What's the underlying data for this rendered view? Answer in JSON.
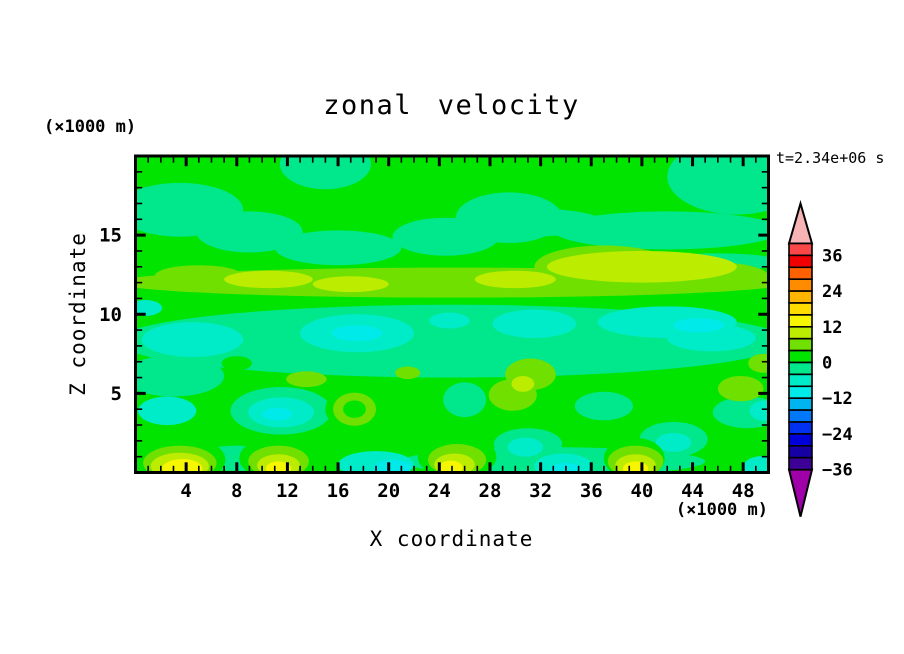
{
  "chart_data": {
    "type": "filled_contour",
    "title": "zonal velocity",
    "time_annotation": "t=2.34e+06 s",
    "xlabel": "X coordinate",
    "x_unit_label": "(×1000 m)",
    "ylabel": "Z coordinate",
    "y_unit_label": "(×1000 m)",
    "x_range": [
      0,
      50
    ],
    "z_range": [
      0,
      20
    ],
    "x_major_ticks": [
      4,
      8,
      12,
      16,
      20,
      24,
      28,
      32,
      36,
      40,
      44,
      48
    ],
    "x_minor_tick_step": 1,
    "y_major_ticks": [
      5,
      10,
      15
    ],
    "y_minor_tick_step": 1,
    "grid": false,
    "contour_interval": 4,
    "background_band": "0..4",
    "palette": {
      "12..16": "#F6F600",
      "8..12": "#BCEC00",
      "4..8": "#70E000",
      "0..4": "#00E400",
      "-4..0": "#00E78C",
      "-8..-4": "#00ECC8",
      "-12..-8": "#00EAEA"
    },
    "colorbar": {
      "position": "right",
      "labels": [
        "36",
        "24",
        "12",
        "0",
        "−12",
        "−24",
        "−36"
      ],
      "over_color": "#F8B4B4",
      "under_color": "#A000A8",
      "segments": [
        {
          "min": 36,
          "max": 40,
          "color": "#FA4848"
        },
        {
          "min": 32,
          "max": 36,
          "color": "#F00000"
        },
        {
          "min": 28,
          "max": 32,
          "color": "#FF6000"
        },
        {
          "min": 24,
          "max": 28,
          "color": "#FF8C00"
        },
        {
          "min": 20,
          "max": 24,
          "color": "#FFB400"
        },
        {
          "min": 16,
          "max": 20,
          "color": "#FFDC00"
        },
        {
          "min": 12,
          "max": 16,
          "color": "#F6F600"
        },
        {
          "min": 8,
          "max": 12,
          "color": "#BCEC00"
        },
        {
          "min": 4,
          "max": 8,
          "color": "#70E000"
        },
        {
          "min": 0,
          "max": 4,
          "color": "#00E400"
        },
        {
          "min": -4,
          "max": 0,
          "color": "#00E78C"
        },
        {
          "min": -8,
          "max": -4,
          "color": "#00ECC8"
        },
        {
          "min": -12,
          "max": -8,
          "color": "#00EAEA"
        },
        {
          "min": -16,
          "max": -12,
          "color": "#00B4F0"
        },
        {
          "min": -20,
          "max": -16,
          "color": "#0078F8"
        },
        {
          "min": -24,
          "max": -20,
          "color": "#0030F0"
        },
        {
          "min": -28,
          "max": -24,
          "color": "#0000D8"
        },
        {
          "min": -32,
          "max": -28,
          "color": "#1600A4"
        },
        {
          "min": -36,
          "max": -32,
          "color": "#3C0096"
        }
      ]
    },
    "region_format": [
      "band",
      "cx_x1000m",
      "cz_x1000m",
      "rx_x1000m",
      "rz_x1000m"
    ],
    "regions": [
      [
        "-4..0",
        15,
        19.5,
        3.6,
        1.6
      ],
      [
        "-4..0",
        3.5,
        16.6,
        5.0,
        1.7
      ],
      [
        "-4..0",
        9,
        15.2,
        4.2,
        1.3
      ],
      [
        "-4..0",
        16,
        14.2,
        5.0,
        1.1
      ],
      [
        "-4..0",
        24.5,
        14.9,
        4.2,
        1.2
      ],
      [
        "-4..0",
        29.5,
        16.1,
        4.2,
        1.6
      ],
      [
        "-4..0",
        47.5,
        18.7,
        5.5,
        2.4
      ],
      [
        "-4..0",
        42,
        15.3,
        9.0,
        1.2
      ],
      [
        "-4..0",
        31,
        15.8,
        6.0,
        0.9
      ],
      [
        "-4..0",
        46,
        13.3,
        5.0,
        0.55
      ],
      [
        "-4..0",
        25,
        8.3,
        26.5,
        2.3
      ],
      [
        "-4..0",
        3,
        6.1,
        4.0,
        1.3
      ],
      [
        "4..8",
        25,
        12.0,
        26.6,
        0.95
      ],
      [
        "4..8",
        5,
        12.4,
        3.5,
        0.7
      ],
      [
        "4..8",
        37,
        13.0,
        5.5,
        1.35
      ],
      [
        "4..8",
        45.5,
        12.4,
        4.5,
        0.9
      ],
      [
        "8..12",
        10.5,
        12.2,
        3.5,
        0.55
      ],
      [
        "8..12",
        17,
        11.9,
        3.0,
        0.5
      ],
      [
        "8..12",
        30,
        12.2,
        3.2,
        0.55
      ],
      [
        "8..12",
        40,
        13.0,
        7.5,
        1.0
      ],
      [
        "-8..-4",
        4.5,
        8.4,
        4.0,
        1.1
      ],
      [
        "-8..-4",
        17.5,
        8.8,
        4.5,
        1.2
      ],
      [
        "-8..-4",
        24.8,
        9.6,
        1.6,
        0.5
      ],
      [
        "-8..-4",
        31.5,
        9.4,
        3.3,
        0.9
      ],
      [
        "-8..-4",
        42,
        9.5,
        5.5,
        1.0
      ],
      [
        "-8..-4",
        45.5,
        8.5,
        3.5,
        0.85
      ],
      [
        "-8..-4",
        0.8,
        10.4,
        1.3,
        0.5
      ],
      [
        "-12..-8",
        17.5,
        8.8,
        2.0,
        0.5
      ],
      [
        "-12..-8",
        44.5,
        9.3,
        2.0,
        0.45
      ],
      [
        "0..4",
        8,
        6.9,
        1.2,
        0.45
      ],
      [
        "-4..0",
        11.5,
        3.9,
        4.0,
        1.5
      ],
      [
        "-4..0",
        26,
        4.6,
        1.7,
        1.1
      ],
      [
        "-4..0",
        31,
        1.8,
        2.7,
        1.0
      ],
      [
        "-4..0",
        37,
        4.2,
        2.3,
        0.9
      ],
      [
        "-4..0",
        42.5,
        2.1,
        2.7,
        1.1
      ],
      [
        "-4..0",
        48.3,
        3.8,
        2.7,
        1.0
      ],
      [
        "-4..0",
        33,
        0.7,
        12.0,
        0.9
      ],
      [
        "-4..0",
        8,
        0.9,
        3.2,
        0.8
      ],
      [
        "-8..-4",
        2.5,
        3.9,
        2.3,
        0.9
      ],
      [
        "-8..-4",
        11.5,
        3.8,
        2.6,
        0.95
      ],
      [
        "-8..-4",
        19,
        0.5,
        3.0,
        0.85
      ],
      [
        "-8..-4",
        30.8,
        1.6,
        1.4,
        0.6
      ],
      [
        "-8..-4",
        42.5,
        1.9,
        1.4,
        0.6
      ],
      [
        "-8..-4",
        49.7,
        3.9,
        1.2,
        0.65
      ],
      [
        "-8..-4",
        33.8,
        0.4,
        2.3,
        0.8
      ],
      [
        "-8..-4",
        49.6,
        0.35,
        1.6,
        0.7
      ],
      [
        "-12..-8",
        11.2,
        3.7,
        1.2,
        0.4
      ],
      [
        "-12..-8",
        20.3,
        0.3,
        1.5,
        0.5
      ],
      [
        "-12..-8",
        34,
        0.2,
        1.2,
        0.4
      ],
      [
        "0..4",
        17.3,
        4.0,
        2.3,
        1.35
      ],
      [
        "4..8",
        17.3,
        4.0,
        1.7,
        1.05
      ],
      [
        "0..4",
        17.3,
        4.0,
        0.9,
        0.55
      ],
      [
        "4..8",
        31.2,
        6.2,
        2.0,
        1.0
      ],
      [
        "4..8",
        29.8,
        4.9,
        1.9,
        1.0
      ],
      [
        "8..12",
        30.6,
        5.6,
        0.9,
        0.5
      ],
      [
        "4..8",
        47.8,
        5.3,
        1.8,
        0.8
      ],
      [
        "4..8",
        49.6,
        6.9,
        1.2,
        0.6
      ],
      [
        "4..8",
        21.5,
        6.3,
        1.0,
        0.4
      ],
      [
        "4..8",
        13.5,
        5.9,
        1.6,
        0.5
      ],
      [
        "0..4",
        3.5,
        0.8,
        3.6,
        1.5
      ],
      [
        "4..8",
        3.5,
        0.6,
        2.9,
        1.1
      ],
      [
        "8..12",
        3.5,
        0.4,
        2.3,
        0.85
      ],
      [
        "12..16",
        3.7,
        0.25,
        1.6,
        0.6
      ],
      [
        "0..4",
        11.3,
        0.9,
        3.1,
        1.4
      ],
      [
        "4..8",
        11.3,
        0.7,
        2.4,
        1.0
      ],
      [
        "8..12",
        11.3,
        0.45,
        1.7,
        0.7
      ],
      [
        "12..16",
        11.3,
        0.25,
        1.0,
        0.45
      ],
      [
        "0..4",
        25.4,
        1.0,
        3.1,
        1.4
      ],
      [
        "4..8",
        25.4,
        0.8,
        2.3,
        1.0
      ],
      [
        "8..12",
        25.2,
        0.5,
        1.6,
        0.7
      ],
      [
        "12..16",
        24.9,
        0.3,
        0.95,
        0.45
      ],
      [
        "0..4",
        39.4,
        0.9,
        2.4,
        1.3
      ],
      [
        "4..8",
        39.5,
        0.7,
        2.2,
        1.0
      ],
      [
        "8..12",
        39.5,
        0.45,
        1.6,
        0.7
      ],
      [
        "12..16",
        39.5,
        0.25,
        1.0,
        0.45
      ]
    ]
  }
}
